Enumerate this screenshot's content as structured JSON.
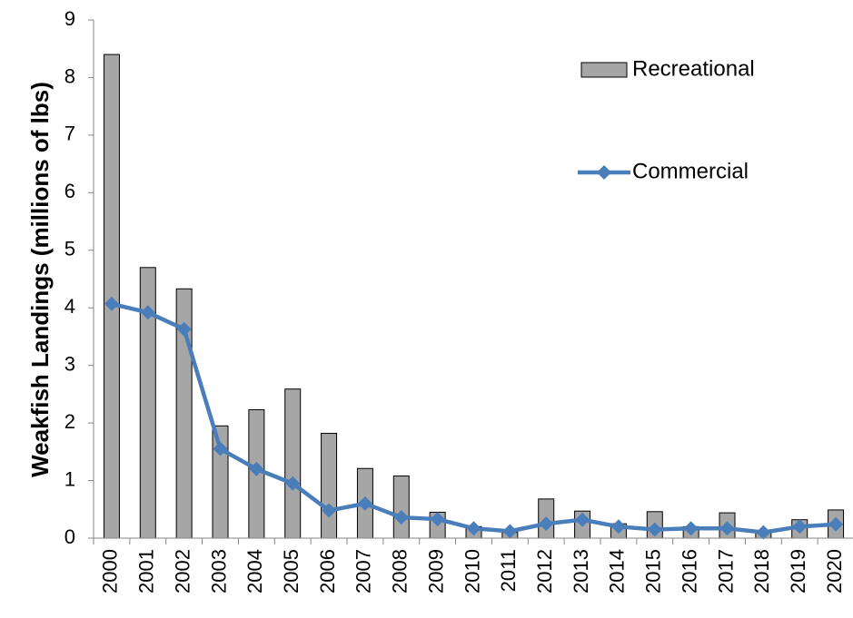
{
  "chart_data": {
    "type": "bar",
    "y_label": "Weakfish Landings (millions of lbs)",
    "categories": [
      "2000",
      "2001",
      "2002",
      "2003",
      "2004",
      "2005",
      "2006",
      "2007",
      "2008",
      "2009",
      "2010",
      "2011",
      "2012",
      "2013",
      "2014",
      "2015",
      "2016",
      "2017",
      "2018",
      "2019",
      "2020"
    ],
    "series": [
      {
        "name": "Recreational",
        "type": "bar",
        "color": "#a6a6a6",
        "values": [
          8.4,
          4.7,
          4.33,
          1.95,
          2.23,
          2.59,
          1.82,
          1.21,
          1.08,
          0.45,
          0.2,
          0.1,
          0.68,
          0.47,
          0.25,
          0.46,
          0.2,
          0.44,
          0.1,
          0.32,
          0.49
        ]
      },
      {
        "name": "Commercial",
        "type": "line",
        "color": "#4a7ebb",
        "values": [
          4.07,
          3.92,
          3.63,
          1.55,
          1.2,
          0.95,
          0.48,
          0.6,
          0.36,
          0.33,
          0.17,
          0.12,
          0.25,
          0.32,
          0.2,
          0.15,
          0.17,
          0.17,
          0.1,
          0.2,
          0.24
        ]
      }
    ],
    "ylim": [
      0,
      9
    ],
    "yticks": [
      0,
      1,
      2,
      3,
      4,
      5,
      6,
      7,
      8,
      9
    ],
    "grid": false
  }
}
